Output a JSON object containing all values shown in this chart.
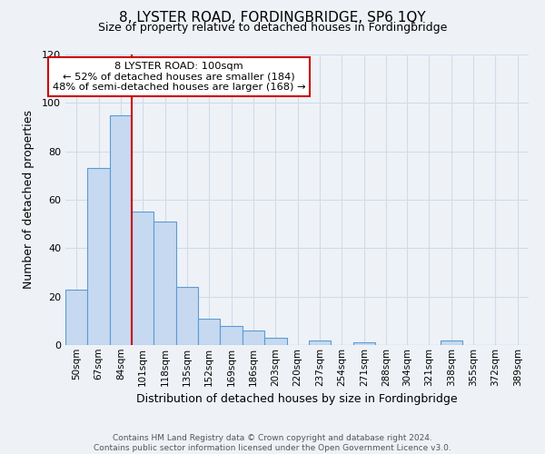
{
  "title": "8, LYSTER ROAD, FORDINGBRIDGE, SP6 1QY",
  "subtitle": "Size of property relative to detached houses in Fordingbridge",
  "xlabel": "Distribution of detached houses by size in Fordingbridge",
  "ylabel": "Number of detached properties",
  "footer_line1": "Contains HM Land Registry data © Crown copyright and database right 2024.",
  "footer_line2": "Contains public sector information licensed under the Open Government Licence v3.0.",
  "bin_labels": [
    "50sqm",
    "67sqm",
    "84sqm",
    "101sqm",
    "118sqm",
    "135sqm",
    "152sqm",
    "169sqm",
    "186sqm",
    "203sqm",
    "220sqm",
    "237sqm",
    "254sqm",
    "271sqm",
    "288sqm",
    "304sqm",
    "321sqm",
    "338sqm",
    "355sqm",
    "372sqm",
    "389sqm"
  ],
  "bar_values": [
    23,
    73,
    95,
    55,
    51,
    24,
    11,
    8,
    6,
    3,
    0,
    2,
    0,
    1,
    0,
    0,
    0,
    2,
    0,
    0,
    0
  ],
  "bar_color": "#c6d9f0",
  "bar_edge_color": "#5b9bd5",
  "property_line_x": 101,
  "bin_edges": [
    50,
    67,
    84,
    101,
    118,
    135,
    152,
    169,
    186,
    203,
    220,
    237,
    254,
    271,
    288,
    304,
    321,
    338,
    355,
    372,
    389
  ],
  "bin_width": 17,
  "annotation_title": "8 LYSTER ROAD: 100sqm",
  "annotation_line1": "← 52% of detached houses are smaller (184)",
  "annotation_line2": "48% of semi-detached houses are larger (168) →",
  "annotation_box_color": "#ffffff",
  "annotation_box_edge_color": "#cc0000",
  "vline_color": "#cc0000",
  "ylim": [
    0,
    120
  ],
  "yticks": [
    0,
    20,
    40,
    60,
    80,
    100,
    120
  ],
  "grid_color": "#d0dce8",
  "background_color": "#eef2f7",
  "title_fontsize": 11,
  "subtitle_fontsize": 9,
  "xlabel_fontsize": 9,
  "ylabel_fontsize": 9,
  "tick_fontsize": 8,
  "xtick_fontsize": 7.5,
  "footer_fontsize": 6.5
}
